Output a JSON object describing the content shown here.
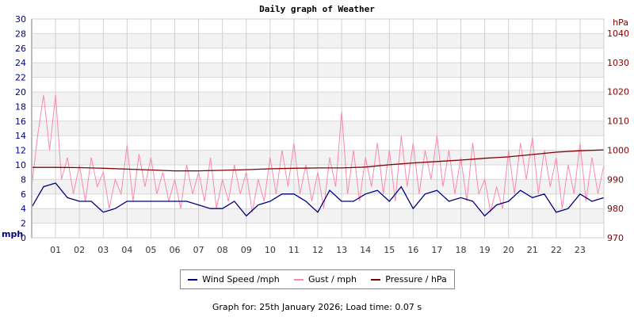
{
  "chart_data": {
    "type": "line",
    "title": "Daily graph of Weather",
    "footer": "Graph for: 25th January 2026; Load time: 0.07 s",
    "x_ticks": [
      "01",
      "02",
      "03",
      "04",
      "05",
      "06",
      "07",
      "08",
      "09",
      "10",
      "11",
      "12",
      "13",
      "14",
      "15",
      "16",
      "17",
      "18",
      "19",
      "20",
      "21",
      "22",
      "23"
    ],
    "xlim": [
      0,
      24
    ],
    "left_axis": {
      "label": "mph",
      "ylim": [
        0,
        30
      ],
      "ticks": [
        "0",
        "2",
        "4",
        "6",
        "8",
        "10",
        "12",
        "14",
        "16",
        "18",
        "20",
        "22",
        "24",
        "26",
        "28",
        "30"
      ],
      "color": "#000080"
    },
    "right_axis": {
      "label": "hPa",
      "ylim": [
        970,
        1040
      ],
      "ticks": [
        "970",
        "980",
        "990",
        "1000",
        "1010",
        "1020",
        "1030",
        "1040"
      ],
      "color": "#800000"
    },
    "grid": true,
    "legend_position": "bottom",
    "series": [
      {
        "name": "Wind Speed /mph",
        "color": "#000080",
        "axis": "left",
        "step_hours": 0.5,
        "values": [
          4.2,
          7,
          7.5,
          5.5,
          5,
          5,
          3.5,
          4,
          5,
          5,
          5,
          5,
          5,
          5,
          4.5,
          4,
          4,
          5,
          3,
          4.5,
          5,
          6,
          6,
          5,
          3.5,
          6.5,
          5,
          5,
          6,
          6.5,
          5,
          7,
          4,
          6,
          6.5,
          5,
          5.5,
          5,
          3,
          4.5,
          5,
          6.5,
          5.5,
          6,
          3.5,
          4,
          6,
          5,
          5.5
        ]
      },
      {
        "name": "Gust / mph",
        "color": "#ff88aa",
        "axis": "left",
        "step_hours": 0.25,
        "values": [
          7,
          14,
          19.6,
          12,
          19.6,
          8,
          11,
          6,
          10,
          5,
          11,
          7,
          9,
          4,
          8,
          6,
          12.7,
          5,
          11.5,
          7,
          11,
          6,
          9,
          5,
          8,
          4,
          10,
          6,
          9,
          5,
          11,
          4,
          8,
          5,
          10,
          6,
          9,
          3.5,
          8,
          5,
          11,
          6,
          12,
          7,
          13,
          6,
          10,
          5,
          9,
          4,
          11,
          7,
          17.3,
          6,
          12,
          5,
          11,
          7,
          13,
          6,
          12,
          5,
          14,
          7,
          13,
          6,
          12,
          8,
          14,
          7,
          12,
          6,
          11,
          5,
          13,
          6,
          8,
          3.5,
          7,
          4,
          12,
          6,
          13,
          8,
          13.8,
          6,
          12,
          7,
          11,
          4,
          10,
          6,
          13,
          5,
          11,
          6,
          10
        ]
      },
      {
        "name": "Pressure / hPa",
        "color": "#800000",
        "axis": "right",
        "step_hours": 1,
        "values": [
          994.1,
          994.1,
          994.0,
          993.8,
          993.5,
          993.2,
          992.9,
          992.9,
          993.1,
          993.3,
          993.6,
          993.8,
          993.9,
          993.9,
          994.2,
          995.0,
          995.6,
          996.1,
          996.6,
          997.2,
          997.7,
          998.5,
          999.3,
          999.8,
          1000.1
        ]
      }
    ]
  }
}
